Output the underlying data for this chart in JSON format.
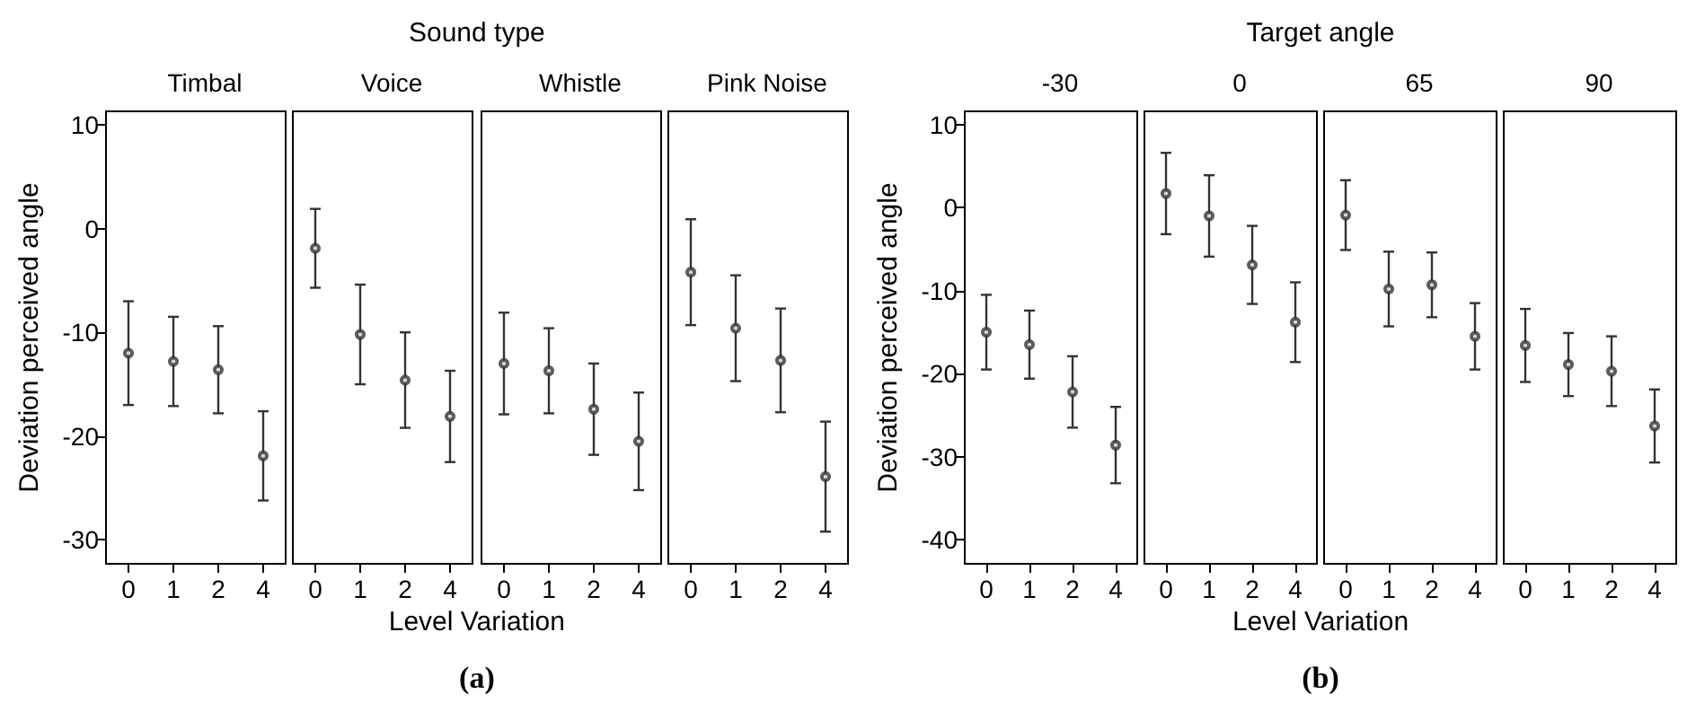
{
  "chart_data": [
    {
      "type": "scatter",
      "title": "Timbal",
      "ylabel": "Deviation perceived angle",
      "xlabel": "Level Variation",
      "annotations": [
        "Sound type",
        "(a)"
      ],
      "categories": [
        "0",
        "1",
        "2",
        "4"
      ],
      "values": [
        -12.0,
        -12.8,
        -13.6,
        -21.9
      ],
      "errors": [
        5.0,
        4.3,
        4.2,
        4.3
      ],
      "color": "#333333",
      "marker": "circle",
      "ylim": [
        -32.3,
        11.3
      ],
      "yticks": [
        -30,
        -20,
        -10,
        0,
        10
      ]
    },
    {
      "type": "scatter",
      "title": "Voice",
      "categories": [
        "0",
        "1",
        "2",
        "4"
      ],
      "values": [
        -1.9,
        -10.2,
        -14.6,
        -18.1
      ],
      "errors": [
        3.8,
        4.8,
        4.6,
        4.4
      ],
      "color": "#333333",
      "marker": "circle",
      "ylim": [
        -32.3,
        11.3
      ],
      "yticks": [
        -30,
        -20,
        -10,
        0,
        10
      ],
      "tick_labels": "x"
    },
    {
      "type": "scatter",
      "title": "Whistle",
      "categories": [
        "0",
        "1",
        "2",
        "4"
      ],
      "values": [
        -13.0,
        -13.7,
        -17.4,
        -20.5
      ],
      "errors": [
        4.9,
        4.1,
        4.4,
        4.7
      ],
      "color": "#333333",
      "marker": "circle",
      "ylim": [
        -32.3,
        11.3
      ],
      "yticks": [
        -30,
        -20,
        -10,
        0,
        10
      ],
      "tick_labels": "x"
    },
    {
      "type": "scatter",
      "title": "Pink Noise",
      "categories": [
        "0",
        "1",
        "2",
        "4"
      ],
      "values": [
        -4.2,
        -9.6,
        -12.7,
        -23.9
      ],
      "errors": [
        5.1,
        5.1,
        5.0,
        5.3
      ],
      "color": "#333333",
      "marker": "circle",
      "ylim": [
        -32.3,
        11.3
      ],
      "yticks": [
        -30,
        -20,
        -10,
        0,
        10
      ],
      "tick_labels": "x"
    },
    {
      "type": "scatter",
      "title": "-30",
      "ylabel": "Deviation perceived angle",
      "xlabel": "Level Variation",
      "annotations": [
        "Target angle",
        "(b)"
      ],
      "categories": [
        "0",
        "1",
        "2",
        "4"
      ],
      "values": [
        -15.0,
        -16.5,
        -22.2,
        -28.6
      ],
      "errors": [
        4.5,
        4.1,
        4.3,
        4.6
      ],
      "color": "#333333",
      "marker": "circle",
      "ylim": [
        -42.9,
        11.6
      ],
      "yticks": [
        -40,
        -30,
        -20,
        -10,
        0,
        10
      ]
    },
    {
      "type": "scatter",
      "title": "0",
      "categories": [
        "0",
        "1",
        "2",
        "4"
      ],
      "values": [
        1.7,
        -1.0,
        -6.9,
        -13.8
      ],
      "errors": [
        4.9,
        4.9,
        4.7,
        4.8
      ],
      "color": "#333333",
      "marker": "circle",
      "ylim": [
        -42.9,
        11.6
      ],
      "yticks": [
        -40,
        -30,
        -20,
        -10,
        0,
        10
      ],
      "tick_labels": "x"
    },
    {
      "type": "scatter",
      "title": "65",
      "categories": [
        "0",
        "1",
        "2",
        "4"
      ],
      "values": [
        -0.9,
        -9.8,
        -9.3,
        -15.5
      ],
      "errors": [
        4.2,
        4.5,
        3.9,
        4.0
      ],
      "color": "#333333",
      "marker": "circle",
      "ylim": [
        -42.9,
        11.6
      ],
      "yticks": [
        -40,
        -30,
        -20,
        -10,
        0,
        10
      ],
      "tick_labels": "x"
    },
    {
      "type": "scatter",
      "title": "90",
      "categories": [
        "0",
        "1",
        "2",
        "4"
      ],
      "values": [
        -16.6,
        -18.9,
        -19.7,
        -26.3
      ],
      "errors": [
        4.4,
        3.8,
        4.2,
        4.4
      ],
      "color": "#333333",
      "marker": "circle",
      "ylim": [
        -42.9,
        11.6
      ],
      "yticks": [
        -40,
        -30,
        -20,
        -10,
        0,
        10
      ],
      "tick_labels": "x"
    }
  ]
}
